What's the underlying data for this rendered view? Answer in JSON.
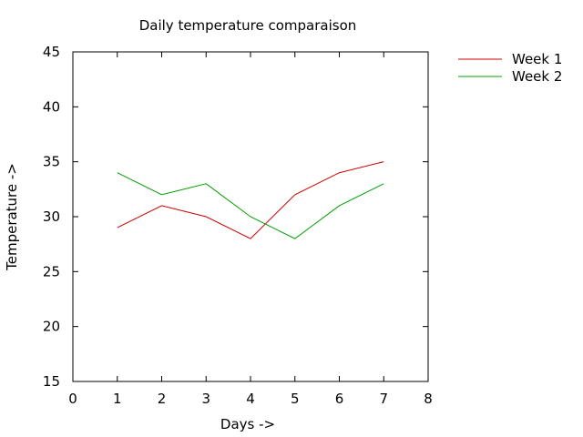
{
  "chart_data": {
    "type": "line",
    "title": "Daily temperature comparaison",
    "xlabel": "Days ->",
    "ylabel": "Temperature ->",
    "xlim": [
      0,
      8
    ],
    "ylim": [
      15,
      45
    ],
    "x_ticks": [
      0,
      1,
      2,
      3,
      4,
      5,
      6,
      7,
      8
    ],
    "y_ticks": [
      15,
      20,
      25,
      30,
      35,
      40,
      45
    ],
    "grid": false,
    "legend_position": "outside-top-right",
    "x": [
      1,
      2,
      3,
      4,
      5,
      6,
      7
    ],
    "series": [
      {
        "name": "Week 1",
        "color": "#cc0000",
        "values": [
          29,
          31,
          30,
          28,
          32,
          34,
          35
        ]
      },
      {
        "name": "Week 2",
        "color": "#00a000",
        "values": [
          34,
          32,
          33,
          30,
          28,
          31,
          33
        ]
      }
    ]
  }
}
